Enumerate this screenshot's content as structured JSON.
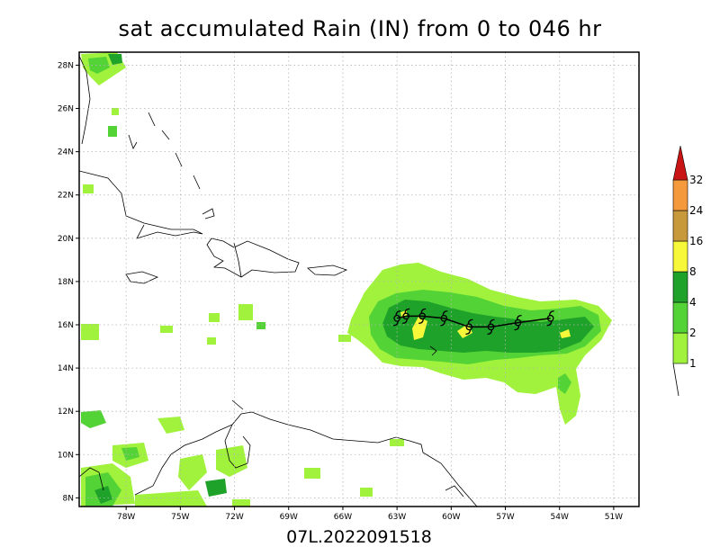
{
  "title": "sat accumulated Rain (IN) from 0 to 046 hr",
  "footer": "07L.2022091518",
  "axes": {
    "lon_labels": [
      {
        "label": "78W",
        "lon": -78
      },
      {
        "label": "75W",
        "lon": -75
      },
      {
        "label": "72W",
        "lon": -72
      },
      {
        "label": "69W",
        "lon": -69
      },
      {
        "label": "66W",
        "lon": -66
      },
      {
        "label": "63W",
        "lon": -63
      },
      {
        "label": "60W",
        "lon": -60
      },
      {
        "label": "57W",
        "lon": -57
      },
      {
        "label": "54W",
        "lon": -54
      },
      {
        "label": "51W",
        "lon": -51
      }
    ],
    "lat_labels": [
      {
        "label": "28N",
        "lat": 28
      },
      {
        "label": "26N",
        "lat": 26
      },
      {
        "label": "24N",
        "lat": 24
      },
      {
        "label": "22N",
        "lat": 22
      },
      {
        "label": "20N",
        "lat": 20
      },
      {
        "label": "18N",
        "lat": 18
      },
      {
        "label": "16N",
        "lat": 16
      },
      {
        "label": "14N",
        "lat": 14
      },
      {
        "label": "12N",
        "lat": 12
      },
      {
        "label": "10N",
        "lat": 10
      },
      {
        "label": "8N",
        "lat": 8
      }
    ],
    "lon_range": [
      -80.6,
      -49.6
    ],
    "lat_range": [
      7.6,
      28.6
    ]
  },
  "colorbar": {
    "labels": [
      "1",
      "2",
      "4",
      "8",
      "16",
      "24",
      "32"
    ],
    "colors": [
      "#a0f23c",
      "#54d336",
      "#1fa229",
      "#f8f83a",
      "#c8993a",
      "#f49a3c",
      "#c81414"
    ]
  },
  "track": [
    {
      "lon": -63.0,
      "lat": 16.3
    },
    {
      "lon": -62.5,
      "lat": 16.4
    },
    {
      "lon": -61.6,
      "lat": 16.4
    },
    {
      "lon": -60.4,
      "lat": 16.3
    },
    {
      "lon": -59.0,
      "lat": 15.9
    },
    {
      "lon": -57.8,
      "lat": 15.9
    },
    {
      "lon": -56.3,
      "lat": 16.1
    },
    {
      "lon": -54.5,
      "lat": 16.3
    }
  ]
}
